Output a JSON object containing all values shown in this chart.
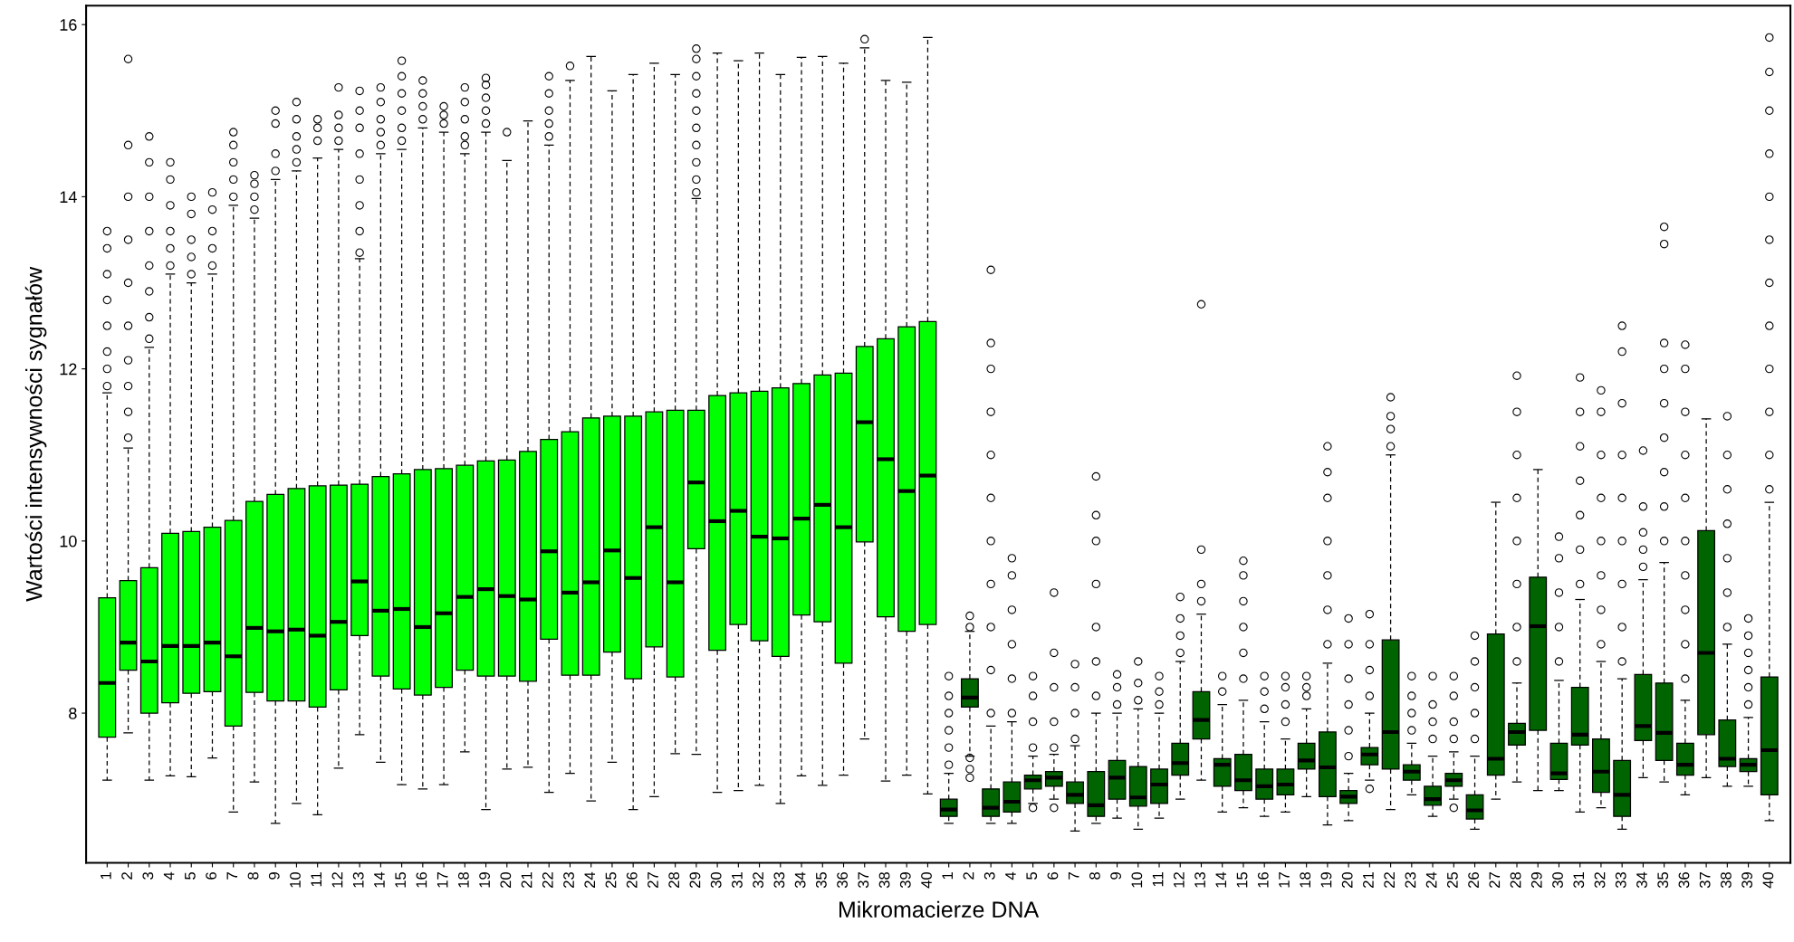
{
  "chart_data": {
    "type": "box",
    "xlabel": "Mikromacierze DNA",
    "ylabel": "Wartości intensywności sygnałów",
    "categories": [
      "1",
      "2",
      "3",
      "4",
      "5",
      "6",
      "7",
      "8",
      "9",
      "10",
      "11",
      "12",
      "13",
      "14",
      "15",
      "16",
      "17",
      "18",
      "19",
      "20",
      "21",
      "22",
      "23",
      "24",
      "25",
      "26",
      "27",
      "28",
      "29",
      "30",
      "31",
      "32",
      "33",
      "34",
      "35",
      "36",
      "37",
      "38",
      "39",
      "40",
      "1",
      "2",
      "3",
      "4",
      "5",
      "6",
      "7",
      "8",
      "9",
      "10",
      "11",
      "12",
      "13",
      "14",
      "15",
      "16",
      "17",
      "18",
      "19",
      "20",
      "21",
      "22",
      "23",
      "24",
      "25",
      "26",
      "27",
      "28",
      "29",
      "30",
      "31",
      "32",
      "33",
      "34",
      "35",
      "36",
      "37",
      "38",
      "39",
      "40"
    ],
    "colors": [
      "#00ff00",
      "#00ff00",
      "#00ff00",
      "#00ff00",
      "#00ff00",
      "#00ff00",
      "#00ff00",
      "#00ff00",
      "#00ff00",
      "#00ff00",
      "#00ff00",
      "#00ff00",
      "#00ff00",
      "#00ff00",
      "#00ff00",
      "#00ff00",
      "#00ff00",
      "#00ff00",
      "#00ff00",
      "#00ff00",
      "#00ff00",
      "#00ff00",
      "#00ff00",
      "#00ff00",
      "#00ff00",
      "#00ff00",
      "#00ff00",
      "#00ff00",
      "#00ff00",
      "#00ff00",
      "#00ff00",
      "#00ff00",
      "#00ff00",
      "#00ff00",
      "#00ff00",
      "#00ff00",
      "#00ff00",
      "#00ff00",
      "#00ff00",
      "#00ff00",
      "#006400",
      "#006400",
      "#006400",
      "#006400",
      "#006400",
      "#006400",
      "#006400",
      "#006400",
      "#006400",
      "#006400",
      "#006400",
      "#006400",
      "#006400",
      "#006400",
      "#006400",
      "#006400",
      "#006400",
      "#006400",
      "#006400",
      "#006400",
      "#006400",
      "#006400",
      "#006400",
      "#006400",
      "#006400",
      "#006400",
      "#006400",
      "#006400",
      "#006400",
      "#006400",
      "#006400",
      "#006400",
      "#006400",
      "#006400",
      "#006400",
      "#006400",
      "#006400",
      "#006400",
      "#006400",
      "#006400"
    ],
    "ylim": [
      6.26,
      16.22
    ],
    "yticks": [
      8,
      10,
      12,
      14,
      16
    ],
    "boxes": [
      {
        "low": 7.22,
        "q1": 7.72,
        "median": 8.35,
        "q3": 9.34,
        "high": 11.72,
        "outliers": [
          11.8,
          12.0,
          12.2,
          12.5,
          12.8,
          13.1,
          13.4,
          13.6
        ]
      },
      {
        "low": 7.77,
        "q1": 8.5,
        "median": 8.82,
        "q3": 9.54,
        "high": 11.08,
        "outliers": [
          11.2,
          11.5,
          11.8,
          12.1,
          12.5,
          13.0,
          13.5,
          14.0,
          14.6,
          15.6
        ]
      },
      {
        "low": 7.22,
        "q1": 8.0,
        "median": 8.6,
        "q3": 9.69,
        "high": 12.25,
        "outliers": [
          12.35,
          12.6,
          12.9,
          13.2,
          13.6,
          14.0,
          14.4,
          14.7
        ]
      },
      {
        "low": 7.27,
        "q1": 8.12,
        "median": 8.78,
        "q3": 10.09,
        "high": 13.1,
        "outliers": [
          13.2,
          13.4,
          13.6,
          13.9,
          14.2,
          14.4
        ]
      },
      {
        "low": 7.26,
        "q1": 8.23,
        "median": 8.78,
        "q3": 10.11,
        "high": 13.0,
        "outliers": [
          13.1,
          13.3,
          13.5,
          13.8,
          14.0
        ]
      },
      {
        "low": 7.48,
        "q1": 8.25,
        "median": 8.82,
        "q3": 10.16,
        "high": 13.1,
        "outliers": [
          13.2,
          13.4,
          13.6,
          13.85,
          14.05
        ]
      },
      {
        "low": 6.85,
        "q1": 7.85,
        "median": 8.66,
        "q3": 10.24,
        "high": 13.9,
        "outliers": [
          14.0,
          14.2,
          14.4,
          14.6,
          14.75
        ]
      },
      {
        "low": 7.2,
        "q1": 8.24,
        "median": 8.99,
        "q3": 10.46,
        "high": 13.75,
        "outliers": [
          13.85,
          14.0,
          14.15,
          14.25
        ]
      },
      {
        "low": 6.72,
        "q1": 8.14,
        "median": 8.95,
        "q3": 10.54,
        "high": 14.2,
        "outliers": [
          14.3,
          14.5,
          14.85,
          15.0
        ]
      },
      {
        "low": 6.95,
        "q1": 8.14,
        "median": 8.97,
        "q3": 10.61,
        "high": 14.3,
        "outliers": [
          14.4,
          14.55,
          14.7,
          14.9,
          15.1
        ]
      },
      {
        "low": 6.82,
        "q1": 8.07,
        "median": 8.9,
        "q3": 10.64,
        "high": 14.45,
        "outliers": [
          14.65,
          14.8,
          14.9
        ]
      },
      {
        "low": 7.36,
        "q1": 8.27,
        "median": 9.06,
        "q3": 10.65,
        "high": 14.55,
        "outliers": [
          14.65,
          14.8,
          14.95,
          15.27
        ]
      },
      {
        "low": 7.75,
        "q1": 8.9,
        "median": 9.53,
        "q3": 10.66,
        "high": 13.28,
        "outliers": [
          13.35,
          13.6,
          13.9,
          14.2,
          14.5,
          14.8,
          15.0,
          15.23
        ]
      },
      {
        "low": 7.43,
        "q1": 8.43,
        "median": 9.19,
        "q3": 10.75,
        "high": 14.5,
        "outliers": [
          14.6,
          14.75,
          14.9,
          15.1,
          15.27
        ]
      },
      {
        "low": 7.17,
        "q1": 8.28,
        "median": 9.21,
        "q3": 10.78,
        "high": 14.55,
        "outliers": [
          14.65,
          14.8,
          15.0,
          15.2,
          15.4,
          15.58
        ]
      },
      {
        "low": 7.12,
        "q1": 8.21,
        "median": 9.0,
        "q3": 10.83,
        "high": 14.8,
        "outliers": [
          14.9,
          15.05,
          15.2,
          15.35
        ]
      },
      {
        "low": 7.17,
        "q1": 8.3,
        "median": 9.16,
        "q3": 10.84,
        "high": 14.75,
        "outliers": [
          14.85,
          14.95,
          15.05
        ]
      },
      {
        "low": 7.55,
        "q1": 8.5,
        "median": 9.35,
        "q3": 10.88,
        "high": 14.5,
        "outliers": [
          14.6,
          14.7,
          14.9,
          15.1,
          15.27
        ]
      },
      {
        "low": 6.88,
        "q1": 8.43,
        "median": 9.44,
        "q3": 10.93,
        "high": 14.75,
        "outliers": [
          14.85,
          15.0,
          15.15,
          15.3,
          15.38
        ]
      },
      {
        "low": 7.35,
        "q1": 8.43,
        "median": 9.36,
        "q3": 10.94,
        "high": 14.42,
        "outliers": [
          14.75
        ]
      },
      {
        "low": 7.37,
        "q1": 8.37,
        "median": 9.32,
        "q3": 11.04,
        "high": 14.88
      },
      {
        "low": 7.08,
        "q1": 8.86,
        "median": 9.88,
        "q3": 11.18,
        "high": 14.6,
        "outliers": [
          14.7,
          14.85,
          15.0,
          15.2,
          15.4
        ]
      },
      {
        "low": 7.3,
        "q1": 8.44,
        "median": 9.4,
        "q3": 11.27,
        "high": 15.35,
        "outliers": [
          15.52
        ]
      },
      {
        "low": 6.98,
        "q1": 8.44,
        "median": 9.52,
        "q3": 11.43,
        "high": 15.63
      },
      {
        "low": 7.43,
        "q1": 8.71,
        "median": 9.89,
        "q3": 11.45,
        "high": 15.23
      },
      {
        "low": 6.88,
        "q1": 8.4,
        "median": 9.57,
        "q3": 11.45,
        "high": 15.42
      },
      {
        "low": 7.03,
        "q1": 8.77,
        "median": 10.16,
        "q3": 11.5,
        "high": 15.55
      },
      {
        "low": 7.53,
        "q1": 8.42,
        "median": 9.52,
        "q3": 11.52,
        "high": 15.42
      },
      {
        "low": 7.52,
        "q1": 9.91,
        "median": 10.68,
        "q3": 11.52,
        "high": 13.98,
        "outliers": [
          14.05,
          14.2,
          14.4,
          14.6,
          14.8,
          15.0,
          15.2,
          15.4,
          15.6,
          15.72
        ]
      },
      {
        "low": 7.08,
        "q1": 8.73,
        "median": 10.23,
        "q3": 11.69,
        "high": 15.67
      },
      {
        "low": 7.1,
        "q1": 9.03,
        "median": 10.35,
        "q3": 11.72,
        "high": 15.58
      },
      {
        "low": 7.16,
        "q1": 8.84,
        "median": 10.05,
        "q3": 11.74,
        "high": 15.67
      },
      {
        "low": 6.95,
        "q1": 8.66,
        "median": 10.03,
        "q3": 11.78,
        "high": 15.42
      },
      {
        "low": 7.27,
        "q1": 9.14,
        "median": 10.26,
        "q3": 11.83,
        "high": 15.62
      },
      {
        "low": 7.16,
        "q1": 9.06,
        "median": 10.42,
        "q3": 11.93,
        "high": 15.63
      },
      {
        "low": 7.28,
        "q1": 8.58,
        "median": 10.16,
        "q3": 11.95,
        "high": 15.55
      },
      {
        "low": 7.7,
        "q1": 9.99,
        "median": 11.38,
        "q3": 12.26,
        "high": 15.73,
        "outliers": [
          15.83
        ]
      },
      {
        "low": 7.21,
        "q1": 9.12,
        "median": 10.95,
        "q3": 12.35,
        "high": 15.35
      },
      {
        "low": 7.28,
        "q1": 8.95,
        "median": 10.58,
        "q3": 12.49,
        "high": 15.33
      },
      {
        "low": 7.06,
        "q1": 9.03,
        "median": 10.76,
        "q3": 12.55,
        "high": 15.85
      },
      {
        "low": 6.72,
        "q1": 6.8,
        "median": 6.88,
        "q3": 7.0,
        "high": 7.3,
        "outliers": [
          7.4,
          7.6,
          7.8,
          8.0,
          8.2,
          8.43
        ]
      },
      {
        "low": 7.5,
        "q1": 8.07,
        "median": 8.18,
        "q3": 8.4,
        "high": 8.95,
        "outliers": [
          7.25,
          7.35,
          7.48,
          9.0,
          9.13
        ]
      },
      {
        "low": 6.72,
        "q1": 6.8,
        "median": 6.9,
        "q3": 7.12,
        "high": 7.85,
        "outliers": [
          8.0,
          8.5,
          9.0,
          9.5,
          10.0,
          10.5,
          11.0,
          11.5,
          12.0,
          12.3,
          13.15
        ]
      },
      {
        "low": 6.72,
        "q1": 6.85,
        "median": 6.97,
        "q3": 7.2,
        "high": 7.9,
        "outliers": [
          8.0,
          8.4,
          8.8,
          9.2,
          9.6,
          9.8
        ]
      },
      {
        "low": 6.95,
        "q1": 7.12,
        "median": 7.22,
        "q3": 7.28,
        "high": 7.5,
        "outliers": [
          6.9,
          7.6,
          7.9,
          8.2,
          8.43
        ]
      },
      {
        "low": 7.0,
        "q1": 7.15,
        "median": 7.25,
        "q3": 7.32,
        "high": 7.52,
        "outliers": [
          6.9,
          7.6,
          7.9,
          8.3,
          8.7,
          9.4
        ]
      },
      {
        "low": 6.63,
        "q1": 6.95,
        "median": 7.05,
        "q3": 7.2,
        "high": 7.62,
        "outliers": [
          7.7,
          8.0,
          8.3,
          8.57
        ]
      },
      {
        "low": 6.72,
        "q1": 6.8,
        "median": 6.93,
        "q3": 7.32,
        "high": 8.0,
        "outliers": [
          8.2,
          8.6,
          9.0,
          9.5,
          10.0,
          10.3,
          10.75
        ]
      },
      {
        "low": 6.78,
        "q1": 7.0,
        "median": 7.25,
        "q3": 7.45,
        "high": 8.0,
        "outliers": [
          8.1,
          8.3,
          8.45
        ]
      },
      {
        "low": 6.65,
        "q1": 6.92,
        "median": 7.02,
        "q3": 7.38,
        "high": 8.05,
        "outliers": [
          8.15,
          8.35,
          8.6
        ]
      },
      {
        "low": 6.78,
        "q1": 6.95,
        "median": 7.17,
        "q3": 7.35,
        "high": 8.0,
        "outliers": [
          8.1,
          8.25,
          8.43
        ]
      },
      {
        "low": 7.0,
        "q1": 7.28,
        "median": 7.42,
        "q3": 7.65,
        "high": 8.6,
        "outliers": [
          8.7,
          8.9,
          9.1,
          9.35
        ]
      },
      {
        "low": 7.22,
        "q1": 7.7,
        "median": 7.92,
        "q3": 8.25,
        "high": 9.15,
        "outliers": [
          9.3,
          9.5,
          9.9,
          12.75
        ]
      },
      {
        "low": 6.85,
        "q1": 7.15,
        "median": 7.4,
        "q3": 7.47,
        "high": 8.1,
        "outliers": [
          8.25,
          8.43
        ]
      },
      {
        "low": 6.9,
        "q1": 7.1,
        "median": 7.22,
        "q3": 7.52,
        "high": 8.15,
        "outliers": [
          8.4,
          8.7,
          9.0,
          9.3,
          9.6,
          9.77
        ]
      },
      {
        "low": 6.8,
        "q1": 7.0,
        "median": 7.15,
        "q3": 7.35,
        "high": 7.9,
        "outliers": [
          8.05,
          8.25,
          8.43
        ]
      },
      {
        "low": 6.85,
        "q1": 7.05,
        "median": 7.17,
        "q3": 7.35,
        "high": 7.7,
        "outliers": [
          7.9,
          8.1,
          8.3,
          8.43
        ]
      },
      {
        "low": 7.03,
        "q1": 7.35,
        "median": 7.45,
        "q3": 7.65,
        "high": 8.05,
        "outliers": [
          8.2,
          8.3,
          8.43
        ]
      },
      {
        "low": 6.7,
        "q1": 7.03,
        "median": 7.37,
        "q3": 7.78,
        "high": 8.58,
        "outliers": [
          8.8,
          9.2,
          9.6,
          10.0,
          10.5,
          10.8,
          11.1
        ]
      },
      {
        "low": 6.75,
        "q1": 6.95,
        "median": 7.03,
        "q3": 7.1,
        "high": 7.3,
        "outliers": [
          7.5,
          7.8,
          8.1,
          8.4,
          8.8,
          9.1
        ]
      },
      {
        "low": 7.22,
        "q1": 7.4,
        "median": 7.52,
        "q3": 7.6,
        "high": 8.0,
        "outliers": [
          7.12,
          8.2,
          8.5,
          8.8,
          9.15
        ]
      },
      {
        "low": 6.88,
        "q1": 7.35,
        "median": 7.78,
        "q3": 8.85,
        "high": 11.0,
        "outliers": [
          11.1,
          11.3,
          11.45,
          11.67
        ]
      },
      {
        "low": 7.05,
        "q1": 7.22,
        "median": 7.32,
        "q3": 7.4,
        "high": 7.65,
        "outliers": [
          7.8,
          8.0,
          8.2,
          8.43
        ]
      },
      {
        "low": 6.8,
        "q1": 6.93,
        "median": 7.0,
        "q3": 7.15,
        "high": 7.5,
        "outliers": [
          7.7,
          7.9,
          8.1,
          8.43
        ]
      },
      {
        "low": 7.0,
        "q1": 7.15,
        "median": 7.22,
        "q3": 7.3,
        "high": 7.55,
        "outliers": [
          6.9,
          7.7,
          7.9,
          8.2,
          8.43
        ]
      },
      {
        "low": 6.65,
        "q1": 6.77,
        "median": 6.87,
        "q3": 7.05,
        "high": 7.5,
        "outliers": [
          7.7,
          8.0,
          8.3,
          8.6,
          8.9
        ]
      },
      {
        "low": 7.0,
        "q1": 7.28,
        "median": 7.47,
        "q3": 8.92,
        "high": 10.45
      },
      {
        "low": 7.2,
        "q1": 7.63,
        "median": 7.78,
        "q3": 7.88,
        "high": 8.35,
        "outliers": [
          8.6,
          9.0,
          9.5,
          10.0,
          10.5,
          11.0,
          11.5,
          11.92
        ]
      },
      {
        "low": 7.1,
        "q1": 7.8,
        "median": 9.01,
        "q3": 9.58,
        "high": 10.83
      },
      {
        "low": 7.1,
        "q1": 7.23,
        "median": 7.3,
        "q3": 7.65,
        "high": 8.38,
        "outliers": [
          8.6,
          9.0,
          9.4,
          9.8,
          10.05
        ]
      },
      {
        "low": 6.85,
        "q1": 7.63,
        "median": 7.75,
        "q3": 8.3,
        "high": 9.32,
        "outliers": [
          9.5,
          9.9,
          10.3,
          10.7,
          11.1,
          11.5,
          11.9
        ]
      },
      {
        "low": 6.9,
        "q1": 7.08,
        "median": 7.32,
        "q3": 7.7,
        "high": 8.6,
        "outliers": [
          8.8,
          9.2,
          9.6,
          10.0,
          10.5,
          11.0,
          11.5,
          11.75
        ]
      },
      {
        "low": 6.65,
        "q1": 6.8,
        "median": 7.05,
        "q3": 7.45,
        "high": 8.4,
        "outliers": [
          8.6,
          9.0,
          9.5,
          10.0,
          10.5,
          11.0,
          11.6,
          12.2,
          12.5
        ]
      },
      {
        "low": 7.25,
        "q1": 7.68,
        "median": 7.85,
        "q3": 8.45,
        "high": 9.55,
        "outliers": [
          9.7,
          9.9,
          10.1,
          10.4,
          11.05
        ]
      },
      {
        "low": 7.2,
        "q1": 7.45,
        "median": 7.77,
        "q3": 8.35,
        "high": 9.75,
        "outliers": [
          10.0,
          10.4,
          10.8,
          11.2,
          11.6,
          12.0,
          12.3,
          13.45,
          13.65
        ]
      },
      {
        "low": 7.05,
        "q1": 7.28,
        "median": 7.4,
        "q3": 7.65,
        "high": 8.15,
        "outliers": [
          8.4,
          8.8,
          9.2,
          9.6,
          10.0,
          10.5,
          11.0,
          11.5,
          12.0,
          12.28
        ]
      },
      {
        "low": 7.25,
        "q1": 7.75,
        "median": 8.7,
        "q3": 10.12,
        "high": 11.42
      },
      {
        "low": 7.15,
        "q1": 7.38,
        "median": 7.47,
        "q3": 7.92,
        "high": 8.8,
        "outliers": [
          9.0,
          9.4,
          9.8,
          10.2,
          10.6,
          11.0,
          11.45
        ]
      },
      {
        "low": 7.15,
        "q1": 7.32,
        "median": 7.4,
        "q3": 7.47,
        "high": 7.95,
        "outliers": [
          8.1,
          8.3,
          8.5,
          8.7,
          8.9,
          9.1
        ]
      },
      {
        "low": 6.75,
        "q1": 7.05,
        "median": 7.57,
        "q3": 8.42,
        "high": 10.45,
        "outliers": [
          10.6,
          11.0,
          11.5,
          12.0,
          12.5,
          13.0,
          13.5,
          14.0,
          14.5,
          15.0,
          15.45,
          15.85
        ]
      }
    ]
  }
}
